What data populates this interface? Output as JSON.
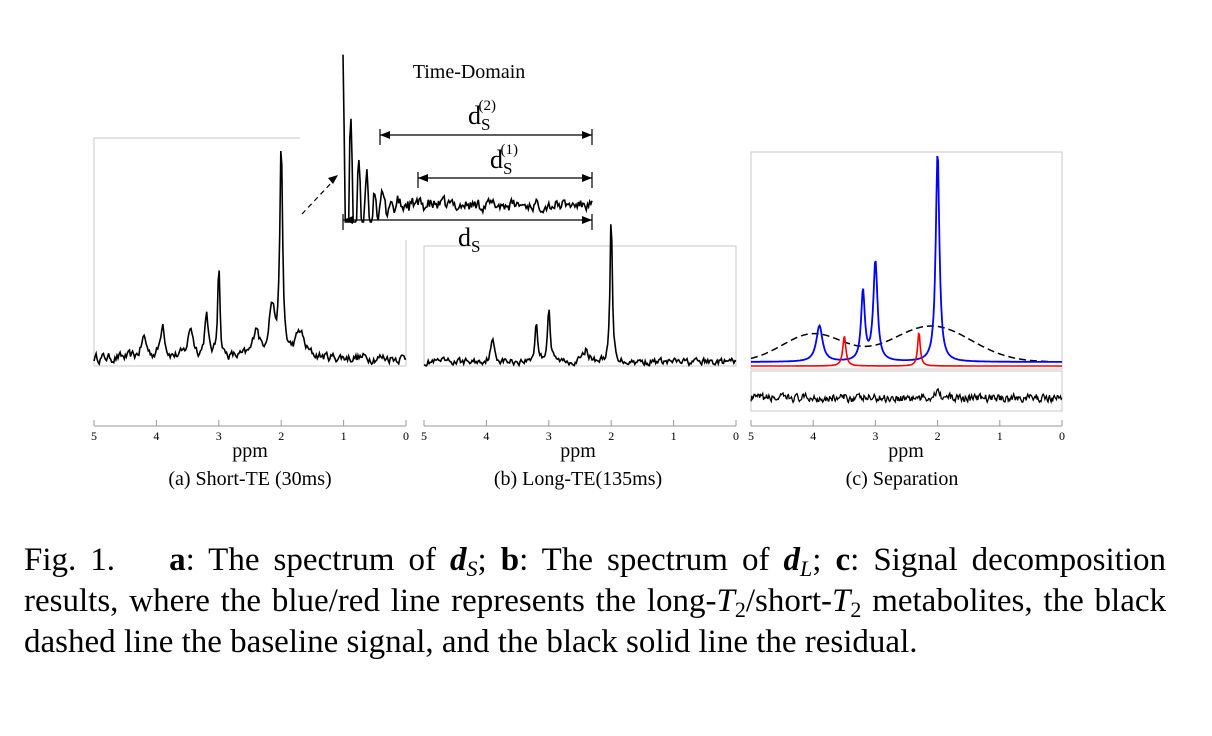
{
  "figure": {
    "inset": {
      "title": "Time-Domain",
      "labels": {
        "ds2": "d",
        "ds1": "d",
        "ds": "d"
      },
      "sub": {
        "ds2": "S",
        "ds1": "S",
        "ds": "S"
      },
      "sup": {
        "ds2": "(2)",
        "ds1": "(1)"
      }
    },
    "axis_label": "ppm",
    "ticks": [
      "5",
      "4",
      "3",
      "2",
      "1",
      "0"
    ],
    "panels": [
      {
        "caption": "(a) Short-TE (30ms)"
      },
      {
        "caption": "(b) Long-TE(135ms)"
      },
      {
        "caption": "(c) Separation"
      }
    ],
    "colors": {
      "long_t2": "#0000ff",
      "short_t2": "#ff0000",
      "baseline": "#000000",
      "residual": "#000000"
    }
  },
  "chart_data": [
    {
      "type": "line",
      "title": "(a) Short-TE (30ms)",
      "xlabel": "ppm",
      "xlim": [
        5,
        0
      ],
      "x_reversed": true,
      "series": [],
      "peaks_ppm": [
        2.0,
        3.0,
        3.2,
        3.9,
        2.4
      ]
    },
    {
      "type": "line",
      "title": "(b) Long-TE(135ms)",
      "xlabel": "ppm",
      "xlim": [
        5,
        0
      ],
      "x_reversed": true,
      "series": [],
      "peaks_ppm": [
        2.0,
        3.0,
        3.2
      ]
    },
    {
      "type": "line",
      "title": "(c) Separation",
      "xlabel": "ppm",
      "xlim": [
        5,
        0
      ],
      "x_reversed": true,
      "series": [
        {
          "color": "#0000ff",
          "peaks_ppm": [
            3.9,
            3.2,
            3.0,
            2.0
          ]
        },
        {
          "color": "#ff0000",
          "peaks_ppm": [
            3.5,
            2.3
          ]
        },
        {
          "color": "#000000",
          "style": "dashed"
        },
        {
          "color": "#000000",
          "style": "solid"
        }
      ]
    }
  ],
  "caption": {
    "label": "Fig. 1.",
    "parts": [
      {
        "b": "a"
      },
      {
        "t": ": The spectrum of "
      },
      {
        "bi": "d"
      },
      {
        "sub": "S"
      },
      {
        "t": "; "
      },
      {
        "b": "b"
      },
      {
        "t": ": The spectrum of "
      },
      {
        "bi": "d"
      },
      {
        "sub": "L"
      },
      {
        "t": "; "
      },
      {
        "b": "c"
      },
      {
        "t": ": Signal decomposition results, where the blue/red line represents the long-"
      },
      {
        "i": "T"
      },
      {
        "sub2": "2"
      },
      {
        "t": "/short-"
      },
      {
        "i": "T"
      },
      {
        "sub2": "2"
      },
      {
        "t": " metabolites, the black dashed line the baseline signal, and the black solid line the residual."
      }
    ]
  }
}
